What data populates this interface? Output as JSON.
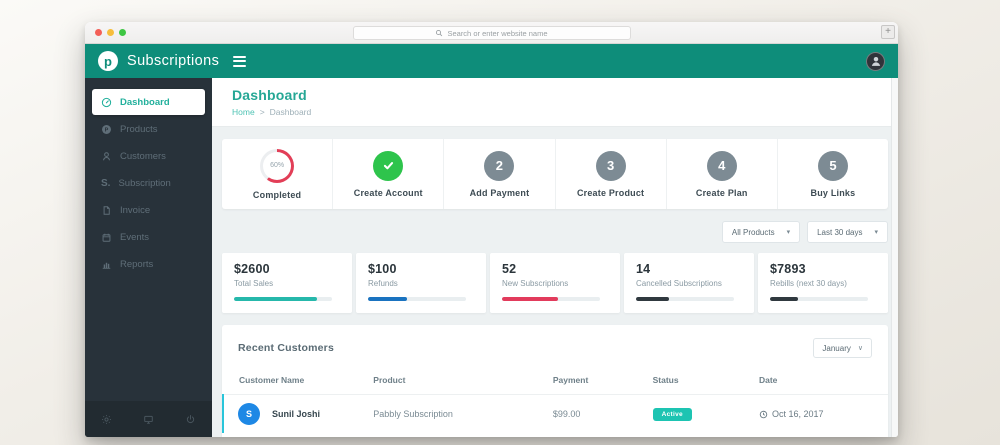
{
  "browser": {
    "search_placeholder": "Search or enter website name",
    "new_tab_label": "+"
  },
  "header": {
    "logo_letter": "p",
    "brand": "Subscriptions"
  },
  "sidebar": {
    "items": [
      {
        "label": "Dashboard",
        "icon": "gauge-icon",
        "active": true
      },
      {
        "label": "Products",
        "icon": "p-circle-icon",
        "active": false
      },
      {
        "label": "Customers",
        "icon": "person-icon",
        "active": false
      },
      {
        "label": "Subscription",
        "icon": "s-icon",
        "active": false
      },
      {
        "label": "Invoice",
        "icon": "file-icon",
        "active": false
      },
      {
        "label": "Events",
        "icon": "calendar-icon",
        "active": false
      },
      {
        "label": "Reports",
        "icon": "bar-chart-icon",
        "active": false
      }
    ],
    "subscription_icon_text": "S.",
    "footer_icons": [
      "settings",
      "monitor",
      "power"
    ]
  },
  "page": {
    "title": "Dashboard",
    "breadcrumb_home": "Home",
    "breadcrumb_sep": ">",
    "breadcrumb_current": "Dashboard"
  },
  "steps": {
    "progress_percent": "60%",
    "progress_pct": 60,
    "progress_label": "Completed",
    "items": [
      {
        "label": "Create Account",
        "symbol": "check"
      },
      {
        "label": "Add Payment",
        "number": "2"
      },
      {
        "label": "Create Product",
        "number": "3"
      },
      {
        "label": "Create Plan",
        "number": "4"
      },
      {
        "label": "Buy Links",
        "number": "5"
      }
    ]
  },
  "filters": {
    "products": "All Products",
    "range": "Last 30 days",
    "caret": "▾"
  },
  "stats": [
    {
      "value": "$2600",
      "label": "Total Sales",
      "color": "#26b8ab",
      "pct": 85
    },
    {
      "value": "$100",
      "label": "Refunds",
      "color": "#1a73c0",
      "pct": 40
    },
    {
      "value": "52",
      "label": "New Subscriptions",
      "color": "#e23b5c",
      "pct": 57
    },
    {
      "value": "14",
      "label": "Cancelled Subscriptions",
      "color": "#30393f",
      "pct": 34
    },
    {
      "value": "$7893",
      "label": "Rebills (next 30 days)",
      "color": "#30393f",
      "pct": 29
    }
  ],
  "recent": {
    "title": "Recent Customers",
    "month_filter": "January",
    "month_caret": "∨",
    "columns": [
      "Customer Name",
      "Product",
      "Payment",
      "Status",
      "Date"
    ],
    "rows": [
      {
        "avatar": "S",
        "name": "Sunil Joshi",
        "product": "Pabbly Subscription",
        "payment": "$99.00",
        "status": "Active",
        "date": "Oct 16, 2017"
      }
    ]
  },
  "colors": {
    "header_teal": "#0e8d7a",
    "accent_teal": "#22b09c",
    "check_green": "#2ec44c",
    "step_gray": "#7d8b94",
    "ring_red": "#e23e57",
    "badge_teal": "#1dc4b2",
    "avatar_blue": "#1e88e5",
    "row_accent": "#29c5da",
    "sidebar_dark": "#28323a"
  }
}
